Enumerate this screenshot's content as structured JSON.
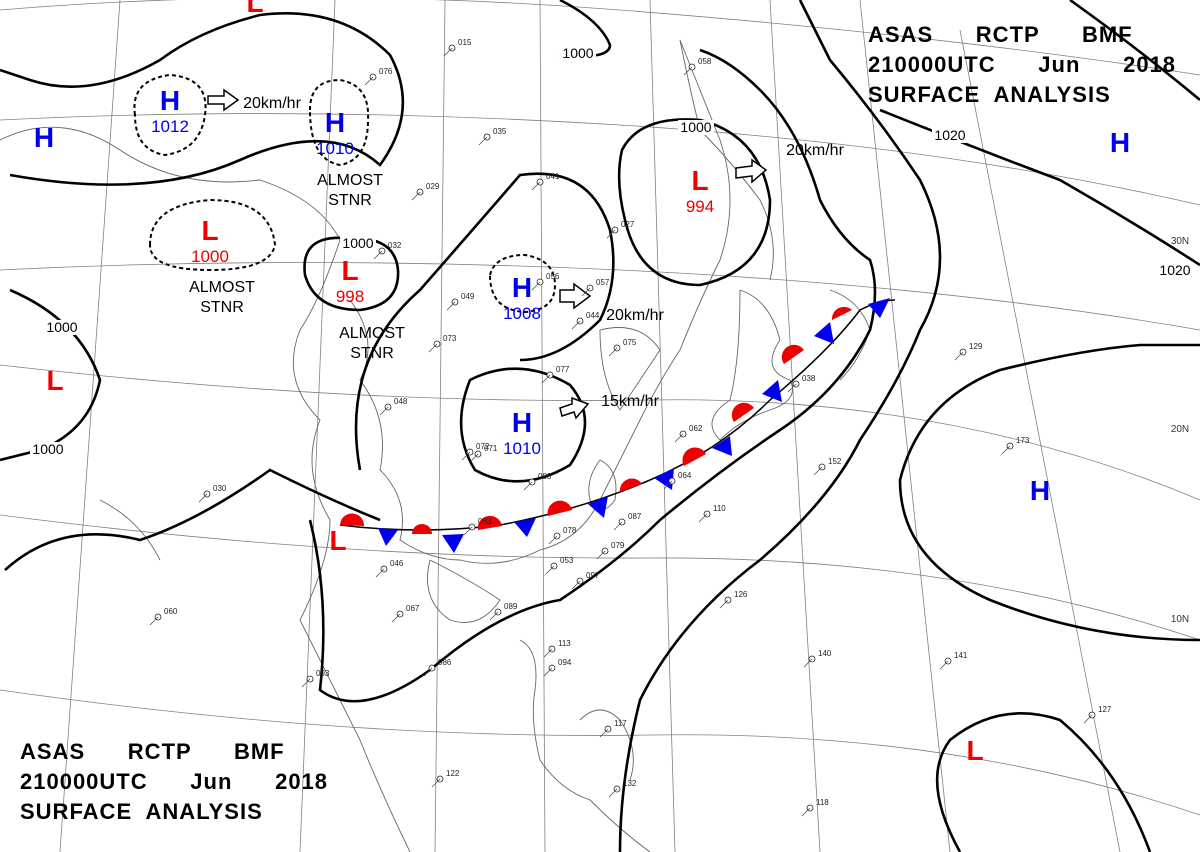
{
  "header": {
    "lines": [
      "ASAS      RCTP      BMF",
      "210000UTC      Jun      2018",
      "SURFACE  ANALYSIS"
    ]
  },
  "footer": {
    "lines": [
      "ASAS      RCTP      BMF",
      "210000UTC      Jun      2018",
      "SURFACE  ANALYSIS"
    ]
  },
  "colors": {
    "high": "#0000ee",
    "low": "#ee0000",
    "isobar": "#000000",
    "grid": "#808080",
    "coast": "#666666"
  },
  "pressure_systems": [
    {
      "type": "H",
      "value": "1012"
    },
    {
      "type": "H",
      "value": "1010"
    },
    {
      "type": "H",
      "value": ""
    },
    {
      "type": "L",
      "value": "1000"
    },
    {
      "type": "L",
      "value": "998"
    },
    {
      "type": "L",
      "value": ""
    },
    {
      "type": "H",
      "value": "1008"
    },
    {
      "type": "H",
      "value": "1010"
    },
    {
      "type": "L",
      "value": "994"
    },
    {
      "type": "H",
      "value": ""
    },
    {
      "type": "H",
      "value": ""
    },
    {
      "type": "L",
      "value": ""
    },
    {
      "type": "L",
      "value": ""
    },
    {
      "type": "L",
      "value": ""
    }
  ],
  "isobar_labels": [
    "1000",
    "1000",
    "1000",
    "1000",
    "1000",
    "1020",
    "1020"
  ],
  "motion_labels": [
    "20km/hr",
    "20km/hr",
    "20km/hr",
    "15km/hr"
  ],
  "stationary_notes": [
    {
      "line1": "ALMOST",
      "line2": "STNR"
    },
    {
      "line1": "ALMOST",
      "line2": "STNR"
    },
    {
      "line1": "ALMOST",
      "line2": "STNR"
    }
  ],
  "latitude_labels": [
    "30N",
    "20N",
    "10N"
  ],
  "front": {
    "type": "stationary"
  },
  "station_readings": [
    "015",
    "076",
    "035",
    "029",
    "032",
    "027",
    "041",
    "057",
    "044",
    "075",
    "077",
    "062",
    "064",
    "071",
    "063",
    "078",
    "079",
    "089",
    "086",
    "093",
    "067",
    "046",
    "060",
    "030",
    "048",
    "049",
    "073",
    "058",
    "056",
    "072",
    "080",
    "110",
    "087",
    "126",
    "152",
    "140",
    "141",
    "173",
    "129",
    "127",
    "118",
    "132",
    "122",
    "113",
    "117",
    "094",
    "038",
    "053",
    "097"
  ]
}
